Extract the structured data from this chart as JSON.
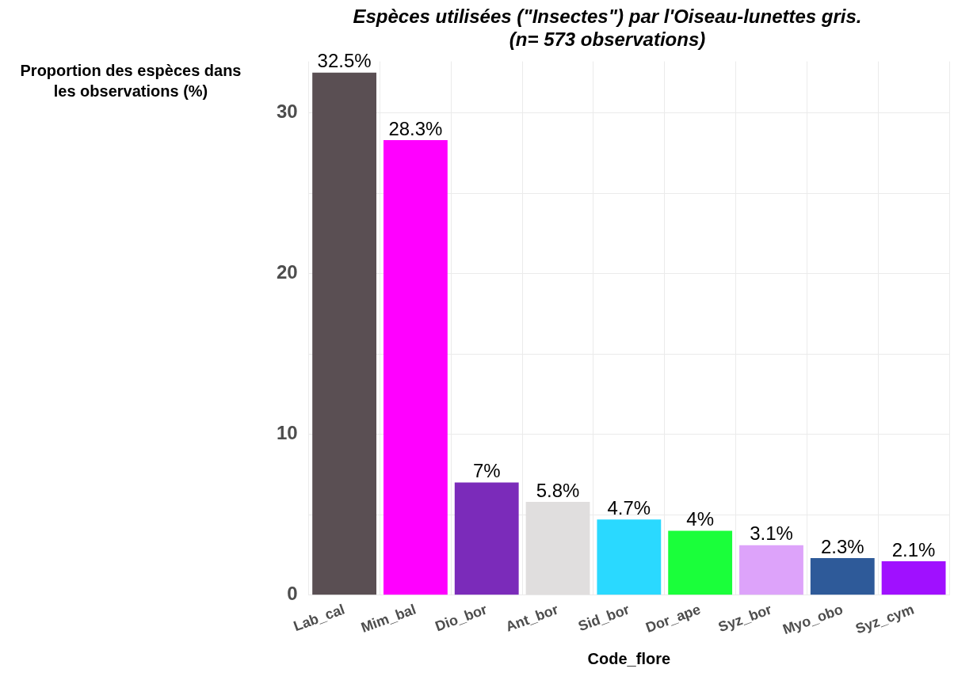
{
  "chart_data": {
    "type": "bar",
    "title": "Espèces utilisées (\"Insectes\") par l'Oiseau-lunettes gris.\n(n= 573 observations)",
    "xlabel": "Code_flore",
    "ylabel": "Proportion des espèces dans les observations (%)",
    "categories": [
      "Lab_cal",
      "Mim_bal",
      "Dio_bor",
      "Ant_bor",
      "Sid_bor",
      "Dor_ape",
      "Syz_bor",
      "Myo_obo",
      "Syz_cym"
    ],
    "values": [
      32.5,
      28.3,
      7,
      5.8,
      4.7,
      4,
      3.1,
      2.3,
      2.1
    ],
    "value_labels": [
      "32.5%",
      "28.3%",
      "7%",
      "5.8%",
      "4.7%",
      "4%",
      "3.1%",
      "2.3%",
      "2.1%"
    ],
    "colors": [
      "#5a4f53",
      "#ff00ff",
      "#7b2bba",
      "#e0dede",
      "#2ad9ff",
      "#1aff3a",
      "#dda3fa",
      "#2e5a99",
      "#a010ff"
    ],
    "ylim": [
      0,
      33.2
    ],
    "yticks": [
      0,
      {
        "value": 5,
        "label": null
      },
      10,
      {
        "value": 15,
        "label": null
      },
      20,
      {
        "value": 25,
        "label": null
      },
      30
    ],
    "grid": true,
    "legend": false
  }
}
